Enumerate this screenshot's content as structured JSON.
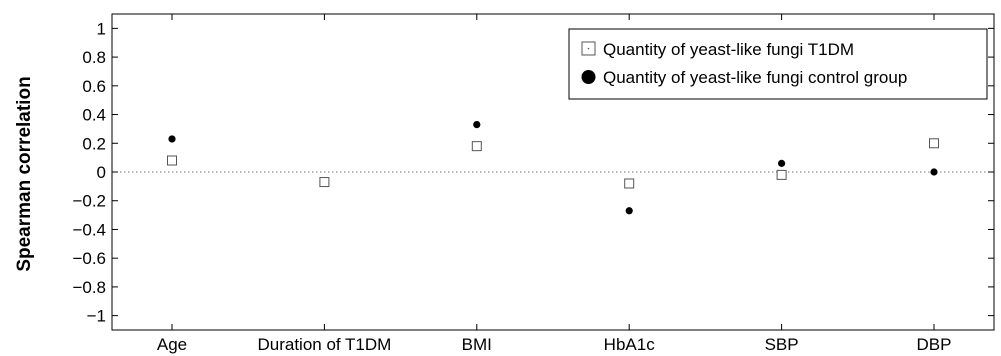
{
  "chart_data": {
    "type": "scatter",
    "title": "",
    "xlabel": "",
    "ylabel": "Spearman correlation",
    "ylim": [
      -1.1,
      1.1
    ],
    "yticks": [
      1,
      0.8,
      0.6,
      0.4,
      0.2,
      0,
      -0.2,
      -0.4,
      -0.6,
      -0.8,
      -1
    ],
    "ytick_labels": [
      "1",
      "0.8",
      "0.6",
      "0.4",
      "0.2",
      "0",
      "−0.2",
      "−0.4",
      "−0.6",
      "−0.8",
      "−1"
    ],
    "categories": [
      "Age",
      "Duration of T1DM",
      "BMI",
      "HbA1c",
      "SBP",
      "DBP"
    ],
    "zero_line": true,
    "grid": false,
    "legend_position": "top-right",
    "series": [
      {
        "name": "Quantity of yeast-like fungi T1DM",
        "marker": "open-square",
        "color": "#555555",
        "values": [
          0.08,
          -0.07,
          0.18,
          -0.08,
          -0.02,
          0.2
        ]
      },
      {
        "name": "Quantity of yeast-like fungi control group",
        "marker": "filled-circle",
        "color": "#000000",
        "values": [
          0.23,
          null,
          0.33,
          -0.27,
          0.06,
          0.0
        ]
      }
    ]
  }
}
